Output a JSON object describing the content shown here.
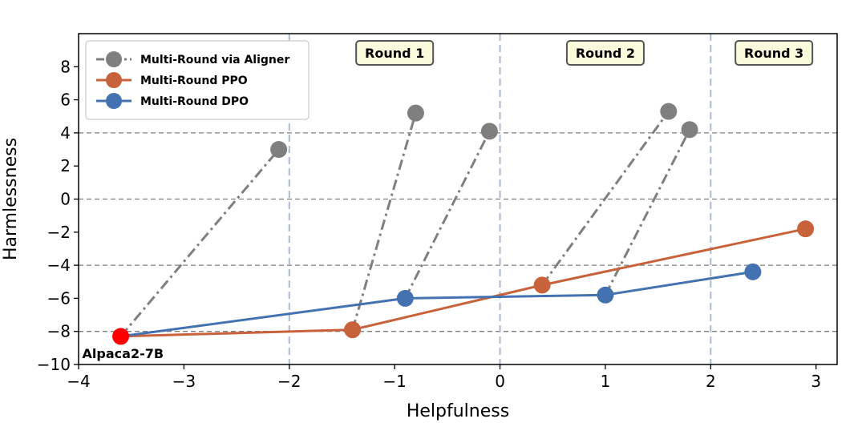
{
  "chart_data": {
    "type": "line",
    "title": "",
    "xlabel": "Helpfulness",
    "ylabel": "Harmlessness",
    "xlim": [
      -4,
      3.2
    ],
    "ylim": [
      -10,
      10
    ],
    "xticks": [
      -4,
      -3,
      -2,
      -1,
      0,
      1,
      2,
      3
    ],
    "yticks": [
      -10,
      -8,
      -6,
      -4,
      -2,
      0,
      2,
      4,
      6,
      8
    ],
    "xtick_labels": [
      "−4",
      "−3",
      "−2",
      "−1",
      "0",
      "1",
      "2",
      "3"
    ],
    "ytick_labels": [
      "−10",
      "−8",
      "−6",
      "−4",
      "−2",
      "0",
      "2",
      "4",
      "6",
      "8"
    ],
    "hlines": [
      4,
      0,
      -4,
      -8
    ],
    "vlines": [
      -2,
      0,
      2
    ],
    "legend_position": "top-left",
    "colors": {
      "aligner": "#7f7f7f",
      "ppo": "#c8623a",
      "dpo": "#4472b0",
      "base": "#ff0000",
      "hline": "#7f7f7f",
      "vline": "#a9b9d6",
      "round_box_fill": "#fafadc",
      "round_box_stroke": "#555555"
    },
    "rounds": [
      {
        "label": "Round 1",
        "x": -1.0
      },
      {
        "label": "Round 2",
        "x": 1.0
      },
      {
        "label": "Round 3",
        "x": 2.6
      }
    ],
    "series": [
      {
        "name": "Multi-Round PPO",
        "style": "solid",
        "points": [
          [
            -3.6,
            -8.3
          ],
          [
            -1.4,
            -7.9
          ],
          [
            0.4,
            -5.2
          ],
          [
            2.9,
            -1.8
          ]
        ]
      },
      {
        "name": "Multi-Round DPO",
        "style": "solid",
        "points": [
          [
            -3.6,
            -8.3
          ],
          [
            -0.9,
            -6.0
          ],
          [
            1.0,
            -5.8
          ],
          [
            2.4,
            -4.4
          ]
        ]
      }
    ],
    "aligner_segments": [
      {
        "from": [
          -3.6,
          -8.3
        ],
        "to": [
          -2.1,
          3.0
        ]
      },
      {
        "from": [
          -1.4,
          -7.9
        ],
        "to": [
          -0.8,
          5.2
        ]
      },
      {
        "from": [
          -0.9,
          -6.0
        ],
        "to": [
          -0.1,
          4.1
        ]
      },
      {
        "from": [
          0.4,
          -5.2
        ],
        "to": [
          1.6,
          5.3
        ]
      },
      {
        "from": [
          1.0,
          -5.8
        ],
        "to": [
          1.8,
          4.2
        ]
      }
    ],
    "legend": [
      {
        "label": "Multi-Round via Aligner",
        "key": "aligner",
        "style": "dashdot"
      },
      {
        "label": "Multi-Round PPO",
        "key": "ppo",
        "style": "solid"
      },
      {
        "label": "Multi-Round DPO",
        "key": "dpo",
        "style": "solid"
      }
    ],
    "base_point": {
      "label": "Alpaca2-7B",
      "x": -3.6,
      "y": -8.3
    }
  }
}
